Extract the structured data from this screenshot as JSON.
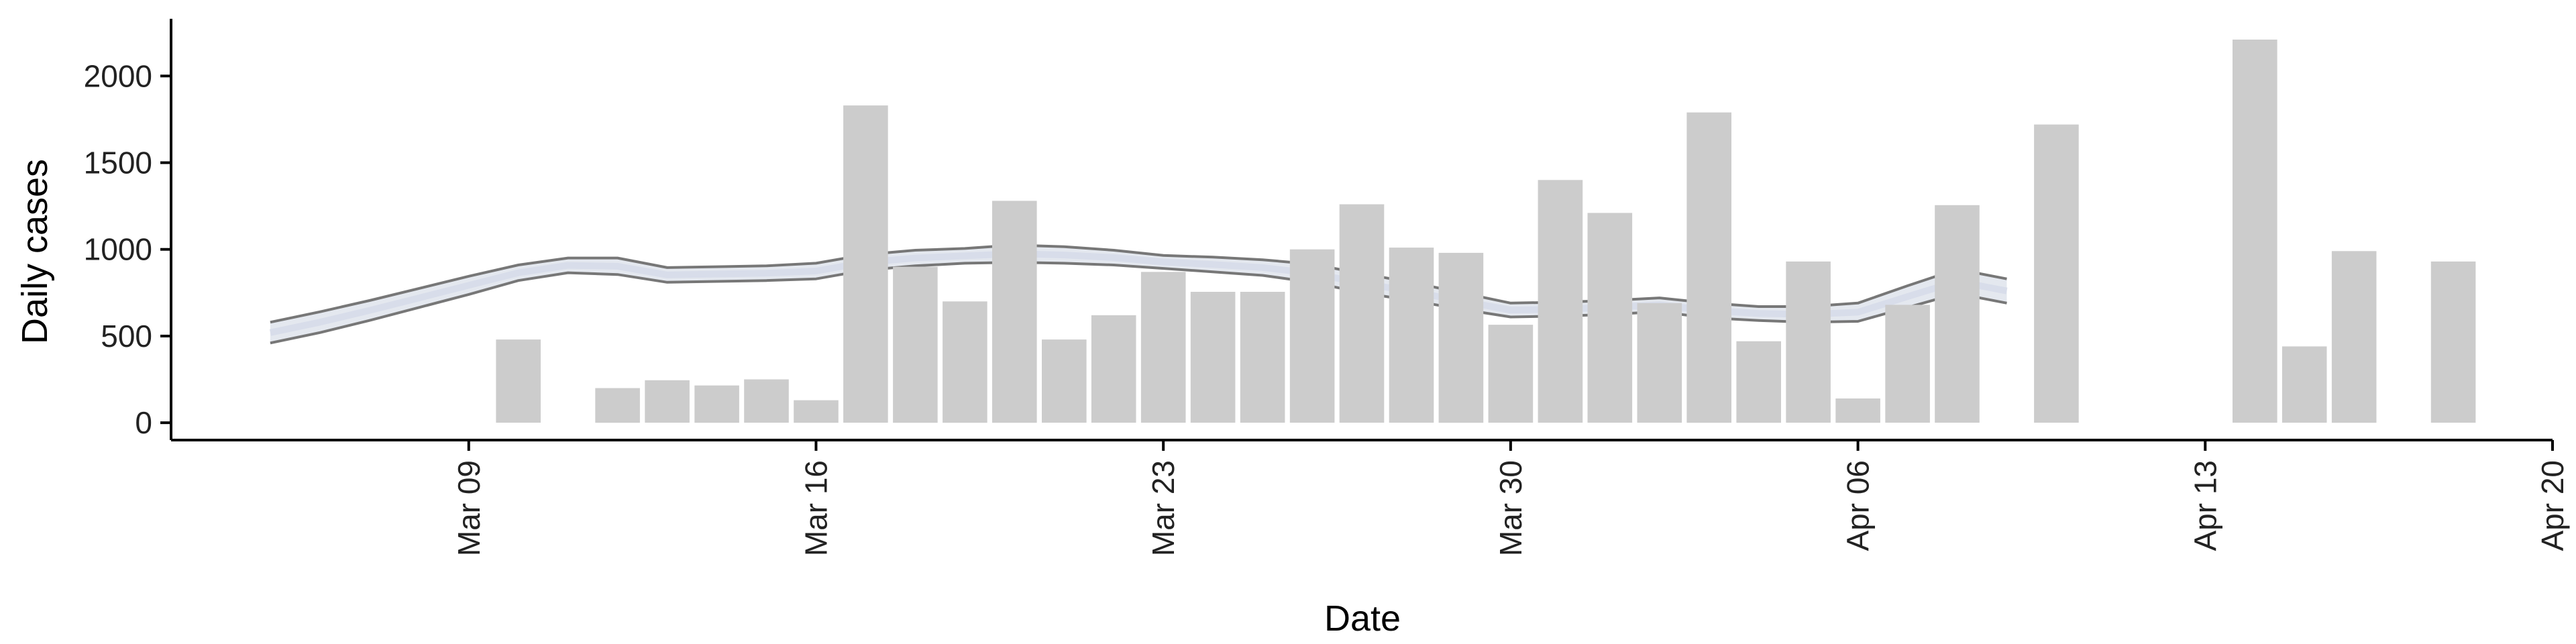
{
  "chart_data": {
    "type": "bar",
    "xlabel": "Date",
    "ylabel": "Daily cases",
    "x_range": [
      "2020-03-03",
      "2020-04-20"
    ],
    "ylim": [
      -100,
      2330
    ],
    "x_ticks": [
      {
        "date": "2020-03-09",
        "label": "Mar 09"
      },
      {
        "date": "2020-03-16",
        "label": "Mar 16"
      },
      {
        "date": "2020-03-23",
        "label": "Mar 23"
      },
      {
        "date": "2020-03-30",
        "label": "Mar 30"
      },
      {
        "date": "2020-04-06",
        "label": "Apr 06"
      },
      {
        "date": "2020-04-13",
        "label": "Apr 13"
      },
      {
        "date": "2020-04-20",
        "label": "Apr 20"
      }
    ],
    "y_ticks": [
      0,
      500,
      1000,
      1500,
      2000
    ],
    "grid": false,
    "colors": {
      "bars": "#cccccc",
      "band_edge": "#777777",
      "band_fill": "#c4cbdc",
      "band_core": "#d5d9e8",
      "band_fade": "#dde1ec",
      "axis": "#000000"
    },
    "bars": [
      {
        "date": "2020-03-10",
        "value": 480
      },
      {
        "date": "2020-03-12",
        "value": 200
      },
      {
        "date": "2020-03-13",
        "value": 245
      },
      {
        "date": "2020-03-14",
        "value": 215
      },
      {
        "date": "2020-03-15",
        "value": 250
      },
      {
        "date": "2020-03-16",
        "value": 130
      },
      {
        "date": "2020-03-17",
        "value": 1830
      },
      {
        "date": "2020-03-18",
        "value": 900
      },
      {
        "date": "2020-03-19",
        "value": 700
      },
      {
        "date": "2020-03-20",
        "value": 1280
      },
      {
        "date": "2020-03-21",
        "value": 480
      },
      {
        "date": "2020-03-22",
        "value": 620
      },
      {
        "date": "2020-03-23",
        "value": 870
      },
      {
        "date": "2020-03-24",
        "value": 755
      },
      {
        "date": "2020-03-25",
        "value": 755
      },
      {
        "date": "2020-03-26",
        "value": 1000
      },
      {
        "date": "2020-03-27",
        "value": 1260
      },
      {
        "date": "2020-03-28",
        "value": 1010
      },
      {
        "date": "2020-03-29",
        "value": 980
      },
      {
        "date": "2020-03-30",
        "value": 565
      },
      {
        "date": "2020-03-31",
        "value": 1400
      },
      {
        "date": "2020-04-01",
        "value": 1210
      },
      {
        "date": "2020-04-02",
        "value": 690
      },
      {
        "date": "2020-04-03",
        "value": 1790
      },
      {
        "date": "2020-04-04",
        "value": 470
      },
      {
        "date": "2020-04-05",
        "value": 930
      },
      {
        "date": "2020-04-06",
        "value": 140
      },
      {
        "date": "2020-04-07",
        "value": 680
      },
      {
        "date": "2020-04-08",
        "value": 1255
      },
      {
        "date": "2020-04-10",
        "value": 1720
      },
      {
        "date": "2020-04-14",
        "value": 2210
      },
      {
        "date": "2020-04-15",
        "value": 440
      },
      {
        "date": "2020-04-16",
        "value": 990
      },
      {
        "date": "2020-04-18",
        "value": 930
      }
    ],
    "band": [
      {
        "date": "2020-03-05",
        "lower": 460,
        "upper": 580
      },
      {
        "date": "2020-03-06",
        "lower": 520,
        "upper": 640
      },
      {
        "date": "2020-03-07",
        "lower": 590,
        "upper": 705
      },
      {
        "date": "2020-03-08",
        "lower": 665,
        "upper": 775
      },
      {
        "date": "2020-03-09",
        "lower": 740,
        "upper": 845
      },
      {
        "date": "2020-03-10",
        "lower": 820,
        "upper": 910
      },
      {
        "date": "2020-03-11",
        "lower": 865,
        "upper": 950
      },
      {
        "date": "2020-03-12",
        "lower": 855,
        "upper": 950
      },
      {
        "date": "2020-03-13",
        "lower": 810,
        "upper": 895
      },
      {
        "date": "2020-03-14",
        "lower": 815,
        "upper": 900
      },
      {
        "date": "2020-03-15",
        "lower": 820,
        "upper": 905
      },
      {
        "date": "2020-03-16",
        "lower": 830,
        "upper": 920
      },
      {
        "date": "2020-03-17",
        "lower": 880,
        "upper": 970
      },
      {
        "date": "2020-03-18",
        "lower": 905,
        "upper": 995
      },
      {
        "date": "2020-03-19",
        "lower": 920,
        "upper": 1005
      },
      {
        "date": "2020-03-20",
        "lower": 925,
        "upper": 1025
      },
      {
        "date": "2020-03-21",
        "lower": 920,
        "upper": 1015
      },
      {
        "date": "2020-03-22",
        "lower": 910,
        "upper": 995
      },
      {
        "date": "2020-03-23",
        "lower": 890,
        "upper": 965
      },
      {
        "date": "2020-03-24",
        "lower": 870,
        "upper": 955
      },
      {
        "date": "2020-03-25",
        "lower": 850,
        "upper": 940
      },
      {
        "date": "2020-03-26",
        "lower": 810,
        "upper": 915
      },
      {
        "date": "2020-03-27",
        "lower": 750,
        "upper": 860
      },
      {
        "date": "2020-03-28",
        "lower": 705,
        "upper": 810
      },
      {
        "date": "2020-03-29",
        "lower": 655,
        "upper": 750
      },
      {
        "date": "2020-03-30",
        "lower": 610,
        "upper": 690
      },
      {
        "date": "2020-03-31",
        "lower": 615,
        "upper": 695
      },
      {
        "date": "2020-04-01",
        "lower": 625,
        "upper": 705
      },
      {
        "date": "2020-04-02",
        "lower": 640,
        "upper": 720
      },
      {
        "date": "2020-04-03",
        "lower": 605,
        "upper": 690
      },
      {
        "date": "2020-04-04",
        "lower": 590,
        "upper": 670
      },
      {
        "date": "2020-04-05",
        "lower": 580,
        "upper": 670
      },
      {
        "date": "2020-04-06",
        "lower": 585,
        "upper": 690
      },
      {
        "date": "2020-04-07",
        "lower": 665,
        "upper": 790
      },
      {
        "date": "2020-04-08",
        "lower": 745,
        "upper": 885
      },
      {
        "date": "2020-04-09",
        "lower": 690,
        "upper": 830
      }
    ]
  }
}
